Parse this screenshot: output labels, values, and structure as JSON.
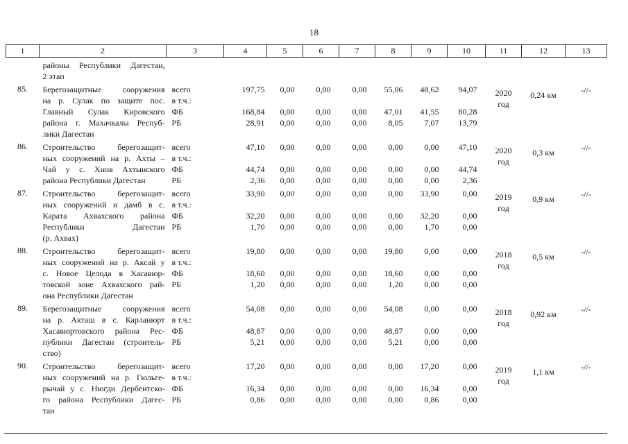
{
  "page": {
    "number": "18"
  },
  "table": {
    "column_numbers": [
      "1",
      "2",
      "3",
      "4",
      "5",
      "6",
      "7",
      "8",
      "9",
      "10",
      "11",
      "12",
      "13"
    ],
    "continuation": {
      "lines": [
        "районы Республики Дагестан,",
        "2 этап"
      ]
    },
    "rows": [
      {
        "num": "85.",
        "desc_lines": [
          "Берегозащитные сооружения",
          "на р. Сулак по защите пос.",
          "Главный Сулак Кировского",
          "района г. Махачкалы Респуб-",
          "лики Дагестан"
        ],
        "src_labels": [
          "всего",
          "в т.ч.:",
          "ФБ",
          "РБ"
        ],
        "values_total": [
          "197,75",
          "0,00",
          "0,00",
          "0,00",
          "55,06",
          "48,62",
          "94,07"
        ],
        "values_fb": [
          "168,84",
          "0,00",
          "0,00",
          "0,00",
          "47,01",
          "41,55",
          "80,28"
        ],
        "values_rb": [
          "28,91",
          "0,00",
          "0,00",
          "0,00",
          "8,05",
          "7,07",
          "13,79"
        ],
        "year_lines": [
          "2020",
          "год"
        ],
        "length": "0,24 км",
        "note": "-//-"
      },
      {
        "num": "86.",
        "desc_lines": [
          "Строительство берегозащит-",
          "ных сооружений на р. Ахты –",
          "Чай у с. Хнов Ахтынского",
          "района Республики Дагестан"
        ],
        "src_labels": [
          "всего",
          "в т.ч.:",
          "ФБ",
          "РБ"
        ],
        "values_total": [
          "47,10",
          "0,00",
          "0,00",
          "0,00",
          "0,00",
          "0,00",
          "47,10"
        ],
        "values_fb": [
          "44,74",
          "0,00",
          "0,00",
          "0,00",
          "0,00",
          "0,00",
          "44,74"
        ],
        "values_rb": [
          "2,36",
          "0,00",
          "0,00",
          "0,00",
          "0,00",
          "0,00",
          "2,36"
        ],
        "year_lines": [
          "2020",
          "год"
        ],
        "length": "0,3 км",
        "note": "-//-"
      },
      {
        "num": "87.",
        "desc_lines": [
          "Строительство берегозащит-",
          "ных сооружений и дамб в с.",
          "Карата Ахвахского района",
          "Республики Дагестан",
          "(р. Ахвах)"
        ],
        "src_labels": [
          "всего",
          "в т.ч.:",
          "ФБ",
          "РБ"
        ],
        "values_total": [
          "33,90",
          "0,00",
          "0,00",
          "0,00",
          "0,00",
          "33,90",
          "0,00"
        ],
        "values_fb": [
          "32,20",
          "0,00",
          "0,00",
          "0,00",
          "0,00",
          "32,20",
          "0,00"
        ],
        "values_rb": [
          "1,70",
          "0,00",
          "0,00",
          "0,00",
          "0,00",
          "1,70",
          "0,00"
        ],
        "year_lines": [
          "2019",
          "год"
        ],
        "length": "0,9 км",
        "note": "-//-"
      },
      {
        "num": "88.",
        "desc_lines": [
          "Строительство берегозащит-",
          "ных сооружений на р. Аксай у",
          "с. Новое Целода в Хасавюр-",
          "товской зоне Ахвахского рай-",
          "она Республики Дагестан"
        ],
        "src_labels": [
          "всего",
          "в т.ч.:",
          "ФБ",
          "РБ"
        ],
        "values_total": [
          "19,80",
          "0,00",
          "0,00",
          "0,00",
          "19,80",
          "0,00",
          "0,00"
        ],
        "values_fb": [
          "18,60",
          "0,00",
          "0,00",
          "0,00",
          "18,60",
          "0,00",
          "0,00"
        ],
        "values_rb": [
          "1,20",
          "0,00",
          "0,00",
          "0,00",
          "1,20",
          "0,00",
          "0,00"
        ],
        "year_lines": [
          "2018",
          "год"
        ],
        "length": "0,5 км",
        "note": "-//-"
      },
      {
        "num": "89.",
        "desc_lines": [
          "Берегозащитные сооружения",
          "на р. Акташ в с. Карланюрт",
          "Хасавюртовского района Рес-",
          "публики Дагестан (строитель-",
          "ство)"
        ],
        "src_labels": [
          "всего",
          "в т.ч.:",
          "ФБ",
          "РБ"
        ],
        "values_total": [
          "54,08",
          "0,00",
          "0,00",
          "0,00",
          "54,08",
          "0,00",
          "0,00"
        ],
        "values_fb": [
          "48,87",
          "0,00",
          "0,00",
          "0,00",
          "48,87",
          "0,00",
          "0,00"
        ],
        "values_rb": [
          "5,21",
          "0,00",
          "0,00",
          "0,00",
          "5,21",
          "0,00",
          "0,00"
        ],
        "year_lines": [
          "2018",
          "год"
        ],
        "length": "0,92 км",
        "note": "-//-"
      },
      {
        "num": "90.",
        "desc_lines": [
          "Строительство берегозащит-",
          "ных сооружений на р. Гюльге-",
          "рычай у с. Нюгди Дербентско-",
          "го района Республики Дагес-",
          "тан"
        ],
        "src_labels": [
          "всего",
          "в т.ч.:",
          "ФБ",
          "РБ"
        ],
        "values_total": [
          "17,20",
          "0,00",
          "0,00",
          "0,00",
          "0,00",
          "17,20",
          "0,00"
        ],
        "values_fb": [
          "16,34",
          "0,00",
          "0,00",
          "0,00",
          "0,00",
          "16,34",
          "0,00"
        ],
        "values_rb": [
          "0,86",
          "0,00",
          "0,00",
          "0,00",
          "0,00",
          "0,86",
          "0,00"
        ],
        "year_lines": [
          "2019",
          "год"
        ],
        "length": "1,1 км",
        "note": "-//-"
      }
    ]
  }
}
